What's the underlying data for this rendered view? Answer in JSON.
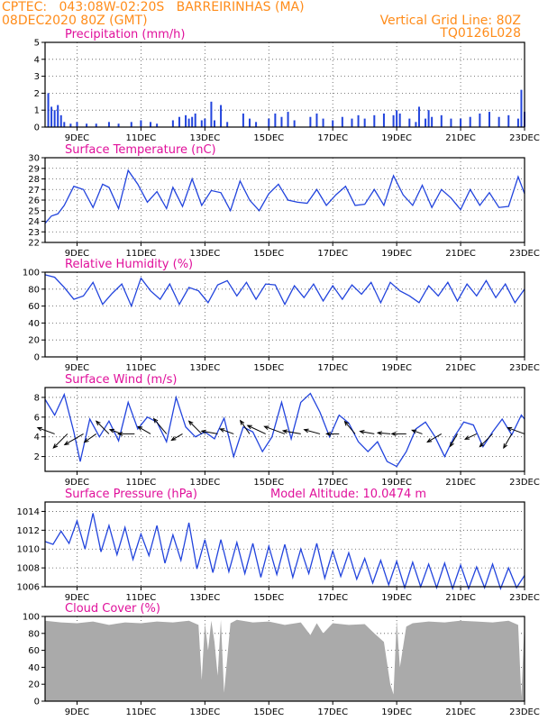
{
  "header": {
    "line1_left": "CPTEC:   043:08W-02:20S   BARREIRINHAS (MA)",
    "line2_left": "08DEC2020 80Z (GMT)",
    "line1_right": "Vertical Grid Line: 80Z",
    "line2_right": "TQ0126L028"
  },
  "colors": {
    "header": "#ff8c1a",
    "title": "#e0109b",
    "line": "#2244dd",
    "cloud": "#aaaaaa",
    "arrow": "#000000"
  },
  "chart_data": [
    {
      "id": "precip",
      "type": "bar",
      "title": "Precipitation (mm/h)",
      "x_ticks": [
        "9DEC",
        "11DEC",
        "13DEC",
        "15DEC",
        "17DEC",
        "19DEC",
        "21DEC",
        "23DEC"
      ],
      "ylim": [
        0,
        5
      ],
      "y_ticks": [
        0,
        1,
        2,
        3,
        4,
        5
      ],
      "grid": true,
      "x": [
        8.1,
        8.2,
        8.3,
        8.4,
        8.5,
        8.6,
        8.8,
        9.0,
        9.3,
        9.6,
        10.0,
        10.3,
        10.7,
        11.0,
        11.3,
        11.5,
        12.0,
        12.2,
        12.4,
        12.5,
        12.6,
        12.7,
        12.9,
        13.0,
        13.2,
        13.3,
        13.5,
        13.7,
        14.2,
        14.4,
        14.6,
        15.0,
        15.2,
        15.4,
        15.6,
        15.8,
        16.3,
        16.5,
        16.7,
        17.0,
        17.3,
        17.6,
        17.8,
        18.0,
        18.3,
        18.6,
        18.9,
        19.0,
        19.1,
        19.4,
        19.6,
        19.7,
        19.9,
        20.0,
        20.1,
        20.4,
        20.7,
        21.0,
        21.3,
        21.6,
        21.9,
        22.2,
        22.5,
        22.8,
        22.9,
        23.0
      ],
      "values": [
        2.0,
        1.2,
        1.0,
        1.3,
        0.7,
        0.3,
        0.2,
        0.3,
        0.2,
        0.2,
        0.3,
        0.2,
        0.3,
        0.4,
        0.3,
        0.2,
        0.4,
        0.6,
        0.7,
        0.5,
        0.6,
        0.8,
        0.4,
        0.5,
        1.5,
        0.4,
        1.3,
        0.3,
        0.8,
        0.5,
        0.3,
        0.5,
        0.8,
        0.6,
        0.9,
        0.4,
        0.6,
        0.8,
        0.5,
        0.4,
        0.6,
        0.5,
        0.7,
        0.5,
        0.7,
        0.8,
        0.7,
        1.0,
        0.8,
        0.5,
        0.3,
        1.2,
        0.5,
        1.0,
        0.6,
        0.7,
        0.5,
        0.5,
        0.6,
        0.8,
        0.9,
        0.6,
        0.7,
        0.5,
        2.2,
        0.9
      ]
    },
    {
      "id": "temp",
      "type": "line",
      "title": "Surface Temperature (nC)",
      "x_ticks": [
        "9DEC",
        "11DEC",
        "13DEC",
        "15DEC",
        "17DEC",
        "19DEC",
        "21DEC",
        "23DEC"
      ],
      "ylim": [
        22,
        30
      ],
      "y_ticks": [
        22,
        23,
        24,
        25,
        26,
        27,
        28,
        29,
        30
      ],
      "grid": true,
      "x": [
        8.0,
        8.2,
        8.4,
        8.6,
        8.9,
        9.2,
        9.5,
        9.8,
        10.0,
        10.3,
        10.6,
        10.9,
        11.2,
        11.5,
        11.8,
        12.0,
        12.3,
        12.6,
        12.9,
        13.2,
        13.5,
        13.8,
        14.1,
        14.4,
        14.7,
        15.0,
        15.3,
        15.6,
        15.9,
        16.2,
        16.5,
        16.8,
        17.1,
        17.4,
        17.7,
        18.0,
        18.3,
        18.6,
        18.9,
        19.2,
        19.5,
        19.8,
        20.1,
        20.4,
        20.7,
        21.0,
        21.3,
        21.6,
        21.9,
        22.2,
        22.5,
        22.8,
        23.0
      ],
      "values": [
        23.8,
        24.5,
        24.7,
        25.5,
        27.3,
        27.0,
        25.3,
        27.5,
        27.2,
        25.2,
        28.8,
        27.5,
        25.8,
        26.8,
        25.2,
        27.2,
        25.4,
        28.0,
        25.5,
        26.9,
        26.7,
        25.0,
        27.8,
        26.0,
        25.0,
        26.6,
        27.5,
        26.0,
        25.8,
        25.7,
        27.0,
        25.5,
        26.5,
        27.3,
        25.5,
        25.6,
        27.0,
        25.5,
        28.3,
        26.5,
        25.5,
        27.4,
        25.3,
        27.0,
        26.2,
        25.1,
        27.0,
        25.5,
        26.7,
        25.3,
        25.4,
        28.2,
        26.6
      ]
    },
    {
      "id": "rh",
      "type": "line",
      "title": "Relative Humidity (%)",
      "x_ticks": [
        "9DEC",
        "11DEC",
        "13DEC",
        "15DEC",
        "17DEC",
        "19DEC",
        "21DEC",
        "23DEC"
      ],
      "ylim": [
        0,
        100
      ],
      "y_ticks": [
        0,
        20,
        40,
        60,
        80,
        100
      ],
      "grid": true,
      "x": [
        8.0,
        8.3,
        8.6,
        8.9,
        9.2,
        9.5,
        9.8,
        10.1,
        10.4,
        10.7,
        11.0,
        11.3,
        11.6,
        11.9,
        12.2,
        12.5,
        12.8,
        13.1,
        13.4,
        13.7,
        14.0,
        14.3,
        14.6,
        14.9,
        15.2,
        15.5,
        15.8,
        16.1,
        16.4,
        16.7,
        17.0,
        17.3,
        17.6,
        17.9,
        18.2,
        18.5,
        18.8,
        19.1,
        19.4,
        19.7,
        20.0,
        20.3,
        20.6,
        20.9,
        21.2,
        21.5,
        21.8,
        22.1,
        22.4,
        22.7,
        23.0
      ],
      "values": [
        97,
        94,
        82,
        68,
        72,
        88,
        62,
        75,
        86,
        60,
        93,
        78,
        68,
        86,
        62,
        82,
        78,
        64,
        85,
        90,
        72,
        88,
        68,
        86,
        85,
        62,
        84,
        70,
        86,
        66,
        84,
        68,
        85,
        74,
        88,
        64,
        88,
        78,
        72,
        64,
        84,
        72,
        88,
        66,
        86,
        72,
        90,
        70,
        86,
        64,
        80
      ]
    },
    {
      "id": "wind",
      "type": "line",
      "title": "Surface Wind (m/s)",
      "x_ticks": [
        "9DEC",
        "11DEC",
        "13DEC",
        "15DEC",
        "17DEC",
        "19DEC",
        "21DEC",
        "23DEC"
      ],
      "ylim": [
        0.5,
        9
      ],
      "y_ticks": [
        2,
        4,
        6,
        8
      ],
      "grid": true,
      "x": [
        8.0,
        8.3,
        8.6,
        8.9,
        9.1,
        9.4,
        9.7,
        10.0,
        10.3,
        10.6,
        10.9,
        11.2,
        11.5,
        11.8,
        12.1,
        12.4,
        12.7,
        13.0,
        13.3,
        13.6,
        13.9,
        14.2,
        14.5,
        14.8,
        15.1,
        15.4,
        15.7,
        16.0,
        16.3,
        16.6,
        16.9,
        17.2,
        17.5,
        17.8,
        18.1,
        18.4,
        18.7,
        19.0,
        19.3,
        19.6,
        19.9,
        20.2,
        20.5,
        20.8,
        21.1,
        21.4,
        21.7,
        22.0,
        22.3,
        22.6,
        22.9,
        23.0
      ],
      "values": [
        7.8,
        6.2,
        8.3,
        4.5,
        1.5,
        5.8,
        4.0,
        5.6,
        3.6,
        7.5,
        4.8,
        6.0,
        5.5,
        3.5,
        8.0,
        5.0,
        4.0,
        4.5,
        3.8,
        5.9,
        2.0,
        5.0,
        4.5,
        2.5,
        4.0,
        7.5,
        3.8,
        7.5,
        8.4,
        6.5,
        4.0,
        6.2,
        5.4,
        3.5,
        2.5,
        3.5,
        1.5,
        1.0,
        2.5,
        4.8,
        5.5,
        4.0,
        2.0,
        4.0,
        5.5,
        5.2,
        3.0,
        4.5,
        5.8,
        4.2,
        6.2,
        5.8
      ],
      "vectors": {
        "x": [
          8.3,
          8.7,
          9.2,
          9.6,
          10.0,
          10.4,
          10.8,
          11.3,
          11.8,
          12.3,
          12.9,
          13.4,
          13.9,
          14.4,
          14.9,
          15.5,
          16.0,
          16.6,
          17.2,
          17.7,
          18.3,
          18.8,
          19.3,
          19.8,
          20.4,
          20.9,
          21.5,
          22.0,
          22.6,
          23.0
        ],
        "dir_deg": [
          200,
          135,
          150,
          145,
          225,
          200,
          180,
          210,
          230,
          150,
          225,
          190,
          200,
          235,
          205,
          200,
          190,
          195,
          180,
          230,
          190,
          185,
          180,
          200,
          150,
          120,
          155,
          135,
          120,
          200
        ],
        "speed": [
          5.0,
          5.5,
          6.0,
          4.0,
          5.0,
          3.5,
          4.5,
          4.0,
          5.5,
          3.5,
          5.0,
          4.5,
          4.0,
          4.5,
          5.5,
          6.0,
          5.0,
          4.5,
          3.5,
          4.5,
          4.0,
          3.5,
          4.0,
          3.0,
          4.5,
          4.0,
          3.5,
          5.0,
          4.5,
          5.0
        ]
      }
    },
    {
      "id": "pressure",
      "type": "line",
      "title": "Surface Pressure (hPa)",
      "annotation": "Model Altitude: 10.0474 m",
      "x_ticks": [
        "9DEC",
        "11DEC",
        "13DEC",
        "15DEC",
        "17DEC",
        "19DEC",
        "21DEC",
        "23DEC"
      ],
      "ylim": [
        1006,
        1015
      ],
      "y_ticks": [
        1006,
        1008,
        1010,
        1012,
        1014
      ],
      "grid": true,
      "x": [
        8.0,
        8.25,
        8.5,
        8.75,
        9.0,
        9.25,
        9.5,
        9.75,
        10.0,
        10.25,
        10.5,
        10.75,
        11.0,
        11.25,
        11.5,
        11.75,
        12.0,
        12.25,
        12.5,
        12.75,
        13.0,
        13.25,
        13.5,
        13.75,
        14.0,
        14.25,
        14.5,
        14.75,
        15.0,
        15.25,
        15.5,
        15.75,
        16.0,
        16.25,
        16.5,
        16.75,
        17.0,
        17.25,
        17.5,
        17.75,
        18.0,
        18.25,
        18.5,
        18.75,
        19.0,
        19.25,
        19.5,
        19.75,
        20.0,
        20.25,
        20.5,
        20.75,
        21.0,
        21.25,
        21.5,
        21.75,
        22.0,
        22.25,
        22.5,
        22.75,
        23.0
      ],
      "values": [
        1010.8,
        1010.5,
        1011.9,
        1010.6,
        1013.0,
        1010.0,
        1013.8,
        1009.7,
        1012.5,
        1009.4,
        1012.3,
        1008.9,
        1011.6,
        1009.3,
        1012.5,
        1008.5,
        1011.5,
        1008.8,
        1012.8,
        1007.9,
        1011.0,
        1007.5,
        1011.0,
        1007.6,
        1010.7,
        1007.4,
        1010.6,
        1007.0,
        1010.3,
        1007.3,
        1010.5,
        1007.0,
        1010.0,
        1007.4,
        1010.6,
        1006.9,
        1009.8,
        1007.1,
        1009.6,
        1006.8,
        1009.0,
        1006.4,
        1008.8,
        1006.2,
        1008.7,
        1005.9,
        1008.6,
        1006.0,
        1008.4,
        1005.9,
        1008.5,
        1005.8,
        1008.3,
        1005.8,
        1008.1,
        1005.9,
        1008.4,
        1005.8,
        1008.0,
        1005.9,
        1007.2
      ]
    },
    {
      "id": "cloud",
      "type": "area",
      "title": "Cloud Cover (%)",
      "x_ticks": [
        "9DEC",
        "11DEC",
        "13DEC",
        "15DEC",
        "17DEC",
        "19DEC",
        "21DEC",
        "23DEC"
      ],
      "ylim": [
        0,
        100
      ],
      "y_ticks": [
        0,
        20,
        40,
        60,
        80,
        100
      ],
      "grid": true,
      "x": [
        8.0,
        8.5,
        9.0,
        9.5,
        10.0,
        10.5,
        11.0,
        11.5,
        12.0,
        12.5,
        12.8,
        12.9,
        13.0,
        13.1,
        13.2,
        13.3,
        13.4,
        13.5,
        13.6,
        13.8,
        14.0,
        14.5,
        15.0,
        15.5,
        16.0,
        16.3,
        16.5,
        16.7,
        17.0,
        17.5,
        18.0,
        18.3,
        18.6,
        18.8,
        18.9,
        19.0,
        19.1,
        19.3,
        19.5,
        20.0,
        20.5,
        21.0,
        21.5,
        22.0,
        22.5,
        22.8,
        22.9,
        23.0
      ],
      "values": [
        95,
        93,
        92,
        94,
        90,
        93,
        92,
        94,
        93,
        95,
        90,
        25,
        92,
        60,
        95,
        70,
        30,
        96,
        10,
        92,
        96,
        93,
        94,
        90,
        93,
        78,
        92,
        80,
        92,
        90,
        91,
        80,
        70,
        20,
        8,
        95,
        40,
        88,
        92,
        94,
        93,
        95,
        94,
        93,
        95,
        90,
        5,
        95
      ]
    }
  ]
}
